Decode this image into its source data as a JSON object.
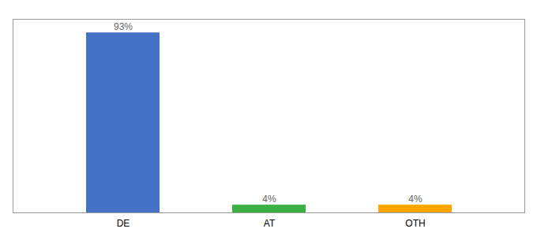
{
  "chart_data": {
    "type": "bar",
    "categories": [
      "DE",
      "AT",
      "OTH"
    ],
    "values": [
      93,
      4,
      4
    ],
    "value_labels": [
      "93%",
      "4%",
      "4%"
    ],
    "colors": [
      "#4472C4",
      "#3CB043",
      "#FFA500"
    ],
    "ylim": [
      0,
      100
    ],
    "yticks": [],
    "grid": false,
    "data_labels": true,
    "tick_labels": "x"
  }
}
